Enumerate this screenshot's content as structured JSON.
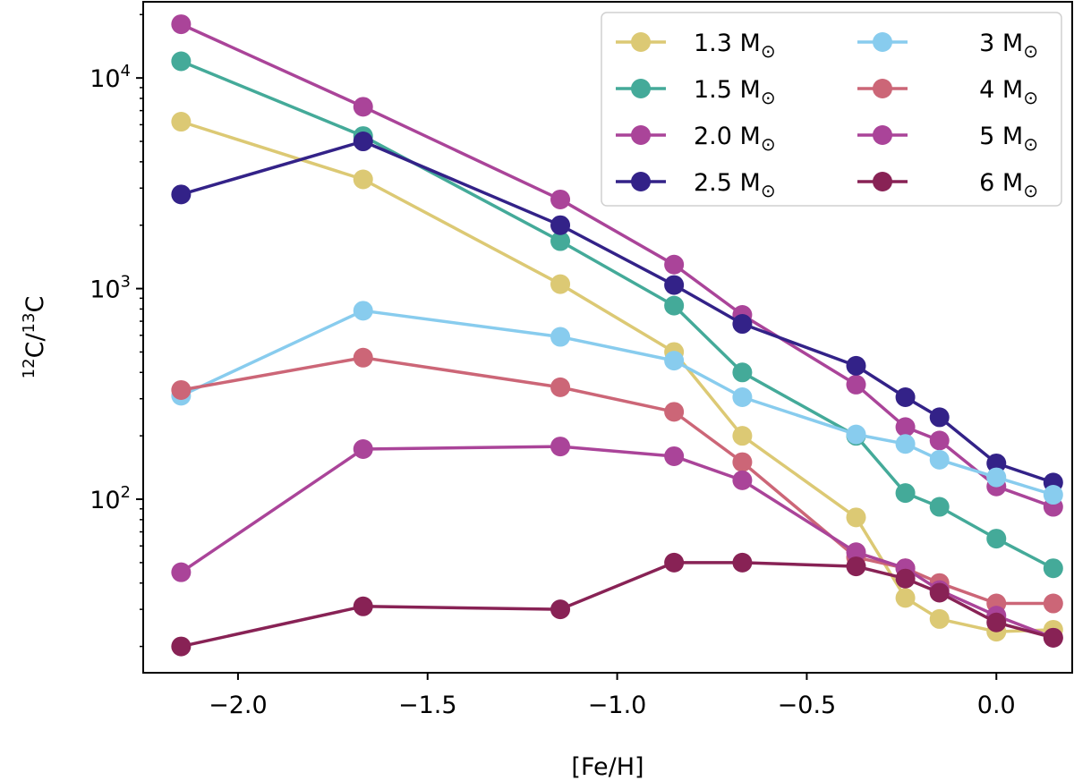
{
  "chart_data": {
    "type": "line",
    "xlabel": "[Fe/H]",
    "ylabel": {
      "pre": "12",
      "mid": "C/",
      "mid2": "13",
      "post": "C"
    },
    "xlim": [
      -2.25,
      0.2
    ],
    "ylim": [
      15,
      23000
    ],
    "yscale": "log",
    "x": [
      -2.15,
      -1.67,
      -1.15,
      -0.85,
      -0.67,
      -0.37,
      -0.24,
      -0.15,
      0.0,
      0.15
    ],
    "xticks": [
      {
        "value": -2.0,
        "label": "−2.0"
      },
      {
        "value": -1.5,
        "label": "−1.5"
      },
      {
        "value": -1.0,
        "label": "−1.0"
      },
      {
        "value": -0.5,
        "label": "−0.5"
      },
      {
        "value": 0.0,
        "label": "0.0"
      }
    ],
    "yticks": [
      {
        "value": 100,
        "base": "10",
        "exp": "2"
      },
      {
        "value": 1000,
        "base": "10",
        "exp": "3"
      },
      {
        "value": 10000,
        "base": "10",
        "exp": "4"
      }
    ],
    "legend_position": "top-right",
    "series": [
      {
        "name": "1.3 M",
        "color": "#DCC974",
        "values": [
          6200,
          3300,
          1050,
          500,
          200,
          82,
          34,
          27,
          23.5,
          24
        ]
      },
      {
        "name": "1.5 M",
        "color": "#44AA99",
        "values": [
          12000,
          5300,
          1680,
          830,
          400,
          200,
          107,
          92,
          65,
          47
        ]
      },
      {
        "name": "2.0 M",
        "color": "#AA4499",
        "values": [
          18000,
          7300,
          2650,
          1300,
          750,
          350,
          220,
          190,
          115,
          92
        ]
      },
      {
        "name": "2.5 M",
        "color": "#332288",
        "values": [
          2800,
          5000,
          2000,
          1040,
          680,
          430,
          305,
          245,
          148,
          120
        ]
      },
      {
        "name": "3 M",
        "color": "#88CCEE",
        "values": [
          310,
          785,
          590,
          455,
          305,
          203,
          183,
          154,
          127,
          105
        ]
      },
      {
        "name": "4 M",
        "color": "#CC6677",
        "values": [
          330,
          470,
          340,
          260,
          150,
          53,
          47,
          40,
          32,
          32
        ]
      },
      {
        "name": "5 M",
        "color": "#AA4499",
        "values": [
          45,
          173,
          178,
          160,
          123,
          56,
          47,
          37,
          28,
          22
        ]
      },
      {
        "name": "6 M",
        "color": "#882255",
        "values": [
          20,
          31,
          30,
          50,
          50,
          48,
          42,
          36,
          26,
          22
        ]
      }
    ],
    "legend_symbol": "⊙"
  }
}
